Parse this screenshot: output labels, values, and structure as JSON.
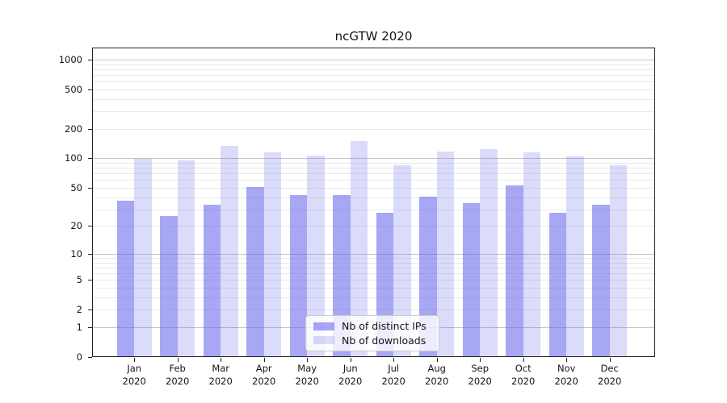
{
  "title": "ncGTW 2020",
  "legend": {
    "items": [
      {
        "label": "Nb of distinct IPs"
      },
      {
        "label": "Nb of downloads"
      }
    ]
  },
  "chart_data": {
    "type": "bar",
    "title": "ncGTW 2020",
    "categories": [
      "Jan 2020",
      "Feb 2020",
      "Mar 2020",
      "Apr 2020",
      "May 2020",
      "Jun 2020",
      "Jul 2020",
      "Aug 2020",
      "Sep 2020",
      "Oct 2020",
      "Nov 2020",
      "Dec 2020"
    ],
    "series": [
      {
        "name": "Nb of distinct IPs",
        "color": "rgba(100,100,235,0.57)",
        "values": [
          36,
          25,
          33,
          50,
          41,
          41,
          27,
          40,
          34,
          52,
          27,
          33
        ]
      },
      {
        "name": "Nb of downloads",
        "color": "rgba(100,100,235,0.23)",
        "values": [
          98,
          94,
          131,
          113,
          105,
          148,
          83,
          116,
          121,
          112,
          103,
          83
        ]
      }
    ],
    "yscale": "log1p",
    "yticks": [
      0,
      1,
      2,
      5,
      10,
      20,
      50,
      100,
      200,
      500,
      1000
    ],
    "ylim": [
      0,
      1320
    ],
    "grid": true,
    "legend_position": "lower center",
    "colors": {
      "grid_major": "#c4c4c4",
      "grid_minor": "#e9e9e9",
      "axis": "#222222"
    }
  }
}
